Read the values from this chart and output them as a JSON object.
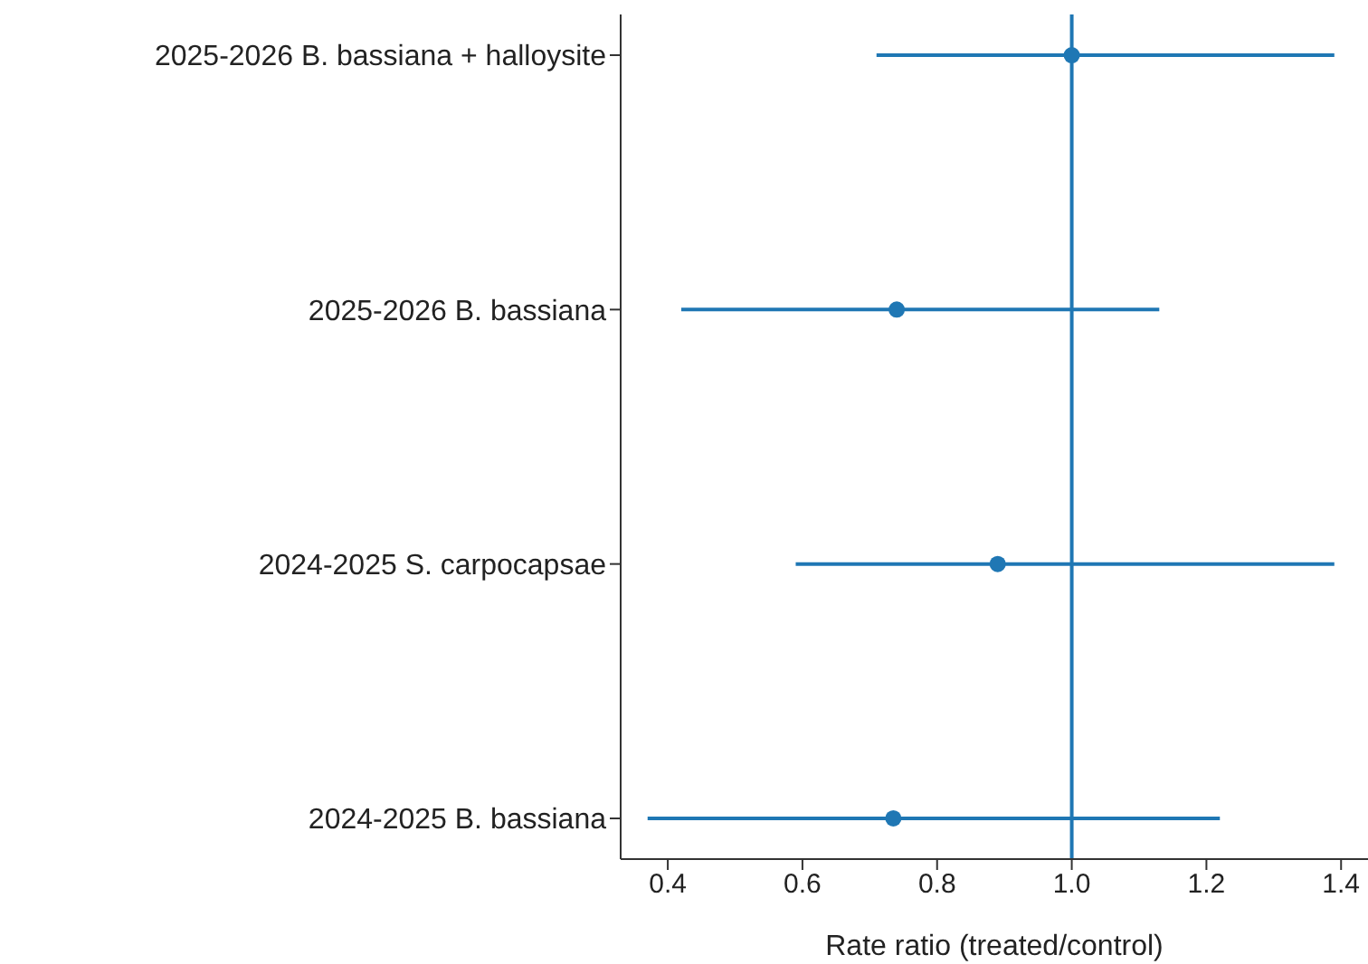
{
  "chart_data": {
    "type": "scatter",
    "orientation": "horizontal",
    "categories": [
      "2025-2026 B. bassiana + halloysite",
      "2025-2026 B. bassiana",
      "2024-2025 S. carpocapsae",
      "2024-2025 B. bassiana"
    ],
    "values": [
      1.0,
      0.74,
      0.89,
      0.735
    ],
    "errors": [
      [
        0.71,
        1.39
      ],
      [
        0.42,
        1.13
      ],
      [
        0.59,
        1.39
      ],
      [
        0.37,
        1.22
      ]
    ],
    "color": "#1f77b4",
    "marker": "circle",
    "xlabel": "Rate ratio (treated/control)",
    "xlim": [
      0.33,
      1.44
    ],
    "xticks": [
      0.4,
      0.6,
      0.8,
      {
        "value": 1,
        "label": "1.0"
      },
      1.2,
      1.4
    ],
    "ref_lines": [
      {
        "axis": "x",
        "value": 1.0,
        "color": "#1f77b4"
      }
    ],
    "grid": false
  }
}
